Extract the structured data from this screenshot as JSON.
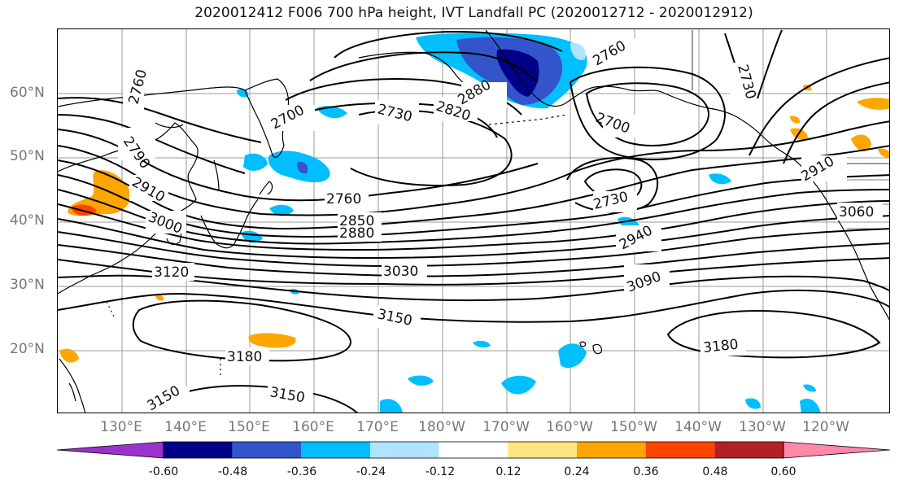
{
  "title": "2020012412 F006 700 hPa height, IVT Landfall PC (2020012712 - 2020012912)",
  "lat_labels": [
    "60°N",
    "50°N",
    "40°N",
    "30°N",
    "20°N"
  ],
  "lon_labels": [
    "130°E",
    "140°E",
    "150°E",
    "160°E",
    "170°E",
    "180°W",
    "170°W",
    "160°W",
    "150°W",
    "140°W",
    "130°W",
    "120°W"
  ],
  "contour_labels": [
    "2760",
    "2790",
    "2910",
    "3000",
    "3120",
    "2700",
    "2730",
    "2820",
    "2880",
    "2850",
    "2760",
    "2850",
    "2880",
    "3030",
    "3150",
    "3180",
    "3150",
    "3150",
    "2760",
    "2730",
    "2940",
    "3090",
    "3180",
    "2910",
    "3060",
    "2730",
    "2700"
  ],
  "colorbar": {
    "ticks": [
      "-0.60",
      "-0.48",
      "-0.36",
      "-0.24",
      "-0.12",
      "0.12",
      "0.24",
      "0.36",
      "0.48",
      "0.60"
    ],
    "colors": [
      "#9933cc",
      "#000088",
      "#3355cc",
      "#00bfff",
      "#aee4ff",
      "#ffffff",
      "#ffe680",
      "#ffa500",
      "#ff4500",
      "#b22222",
      "#ff88aa"
    ]
  },
  "map": {
    "projection": "cylindrical",
    "lon_range": [
      "120°E",
      "115°W"
    ],
    "lat_range": [
      "10°N",
      "70°N"
    ],
    "graticule": "10°",
    "contour_color": "#000000",
    "coastline_color": "#000000"
  }
}
